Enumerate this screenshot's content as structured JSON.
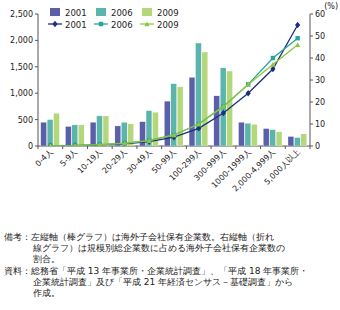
{
  "chart_data": {
    "type": "bar",
    "categories": [
      "0-4人",
      "5-9人",
      "10-19人",
      "20-29人",
      "30-49人",
      "50-99人",
      "100-299人",
      "300-999人",
      "1000-1999人",
      "2,000-4,999人",
      "5,000人以上"
    ],
    "series": [
      {
        "name": "2001",
        "type": "bar",
        "color": "#5a5fa8",
        "values": [
          450,
          370,
          450,
          380,
          460,
          850,
          1300,
          950,
          450,
          330,
          180
        ]
      },
      {
        "name": "2006",
        "type": "bar",
        "color": "#5bb5ac",
        "values": [
          500,
          400,
          570,
          450,
          670,
          1180,
          1950,
          1480,
          430,
          310,
          160
        ]
      },
      {
        "name": "2009",
        "type": "bar",
        "color": "#b4d77c",
        "values": [
          620,
          400,
          570,
          420,
          640,
          1120,
          1780,
          1420,
          410,
          270,
          230
        ]
      },
      {
        "name": "2001",
        "type": "line",
        "axis": "y2",
        "color": "#1f2f78",
        "marker": "diamond",
        "values": [
          0.1,
          0.2,
          0.5,
          1,
          2,
          4,
          8,
          15,
          24,
          35,
          55
        ]
      },
      {
        "name": "2006",
        "type": "line",
        "axis": "y2",
        "color": "#26a69a",
        "marker": "square",
        "values": [
          0.1,
          0.2,
          0.6,
          1.2,
          2.5,
          5,
          10,
          18,
          28,
          40,
          49
        ]
      },
      {
        "name": "2009",
        "type": "line",
        "axis": "y2",
        "color": "#8cc63f",
        "marker": "triangle",
        "values": [
          0.1,
          0.2,
          0.6,
          1.2,
          2.4,
          5,
          10,
          18,
          28,
          37,
          46
        ]
      }
    ],
    "ylim": [
      0,
      2500
    ],
    "yticks": [
      0,
      500,
      {
        "value": 1000,
        "label": "1,000"
      },
      {
        "value": 1500,
        "label": "1,500"
      },
      {
        "value": 2000,
        "label": "2,000"
      },
      {
        "value": 2500,
        "label": "2,500"
      }
    ],
    "y2lim": [
      0,
      60
    ],
    "y2ticks": [
      0,
      10,
      20,
      30,
      40,
      50,
      60
    ],
    "y2_label": "(%)",
    "grid": false,
    "legend": "upper left",
    "annotations": [
      "備考：左縦軸（棒グラフ）は海外子会社保有企業数。右縦軸（折れ",
      "線グラフ）は規模別総企業数に占める海外子会社保有企業数の",
      "割合。",
      "資料：総務省「平成 13 年事業所・企業統計調査」、「平成 18 年事業所・",
      "企業統計調査」及び「平成 21 年経済センサス－基礎調査」から",
      "作成。"
    ]
  }
}
